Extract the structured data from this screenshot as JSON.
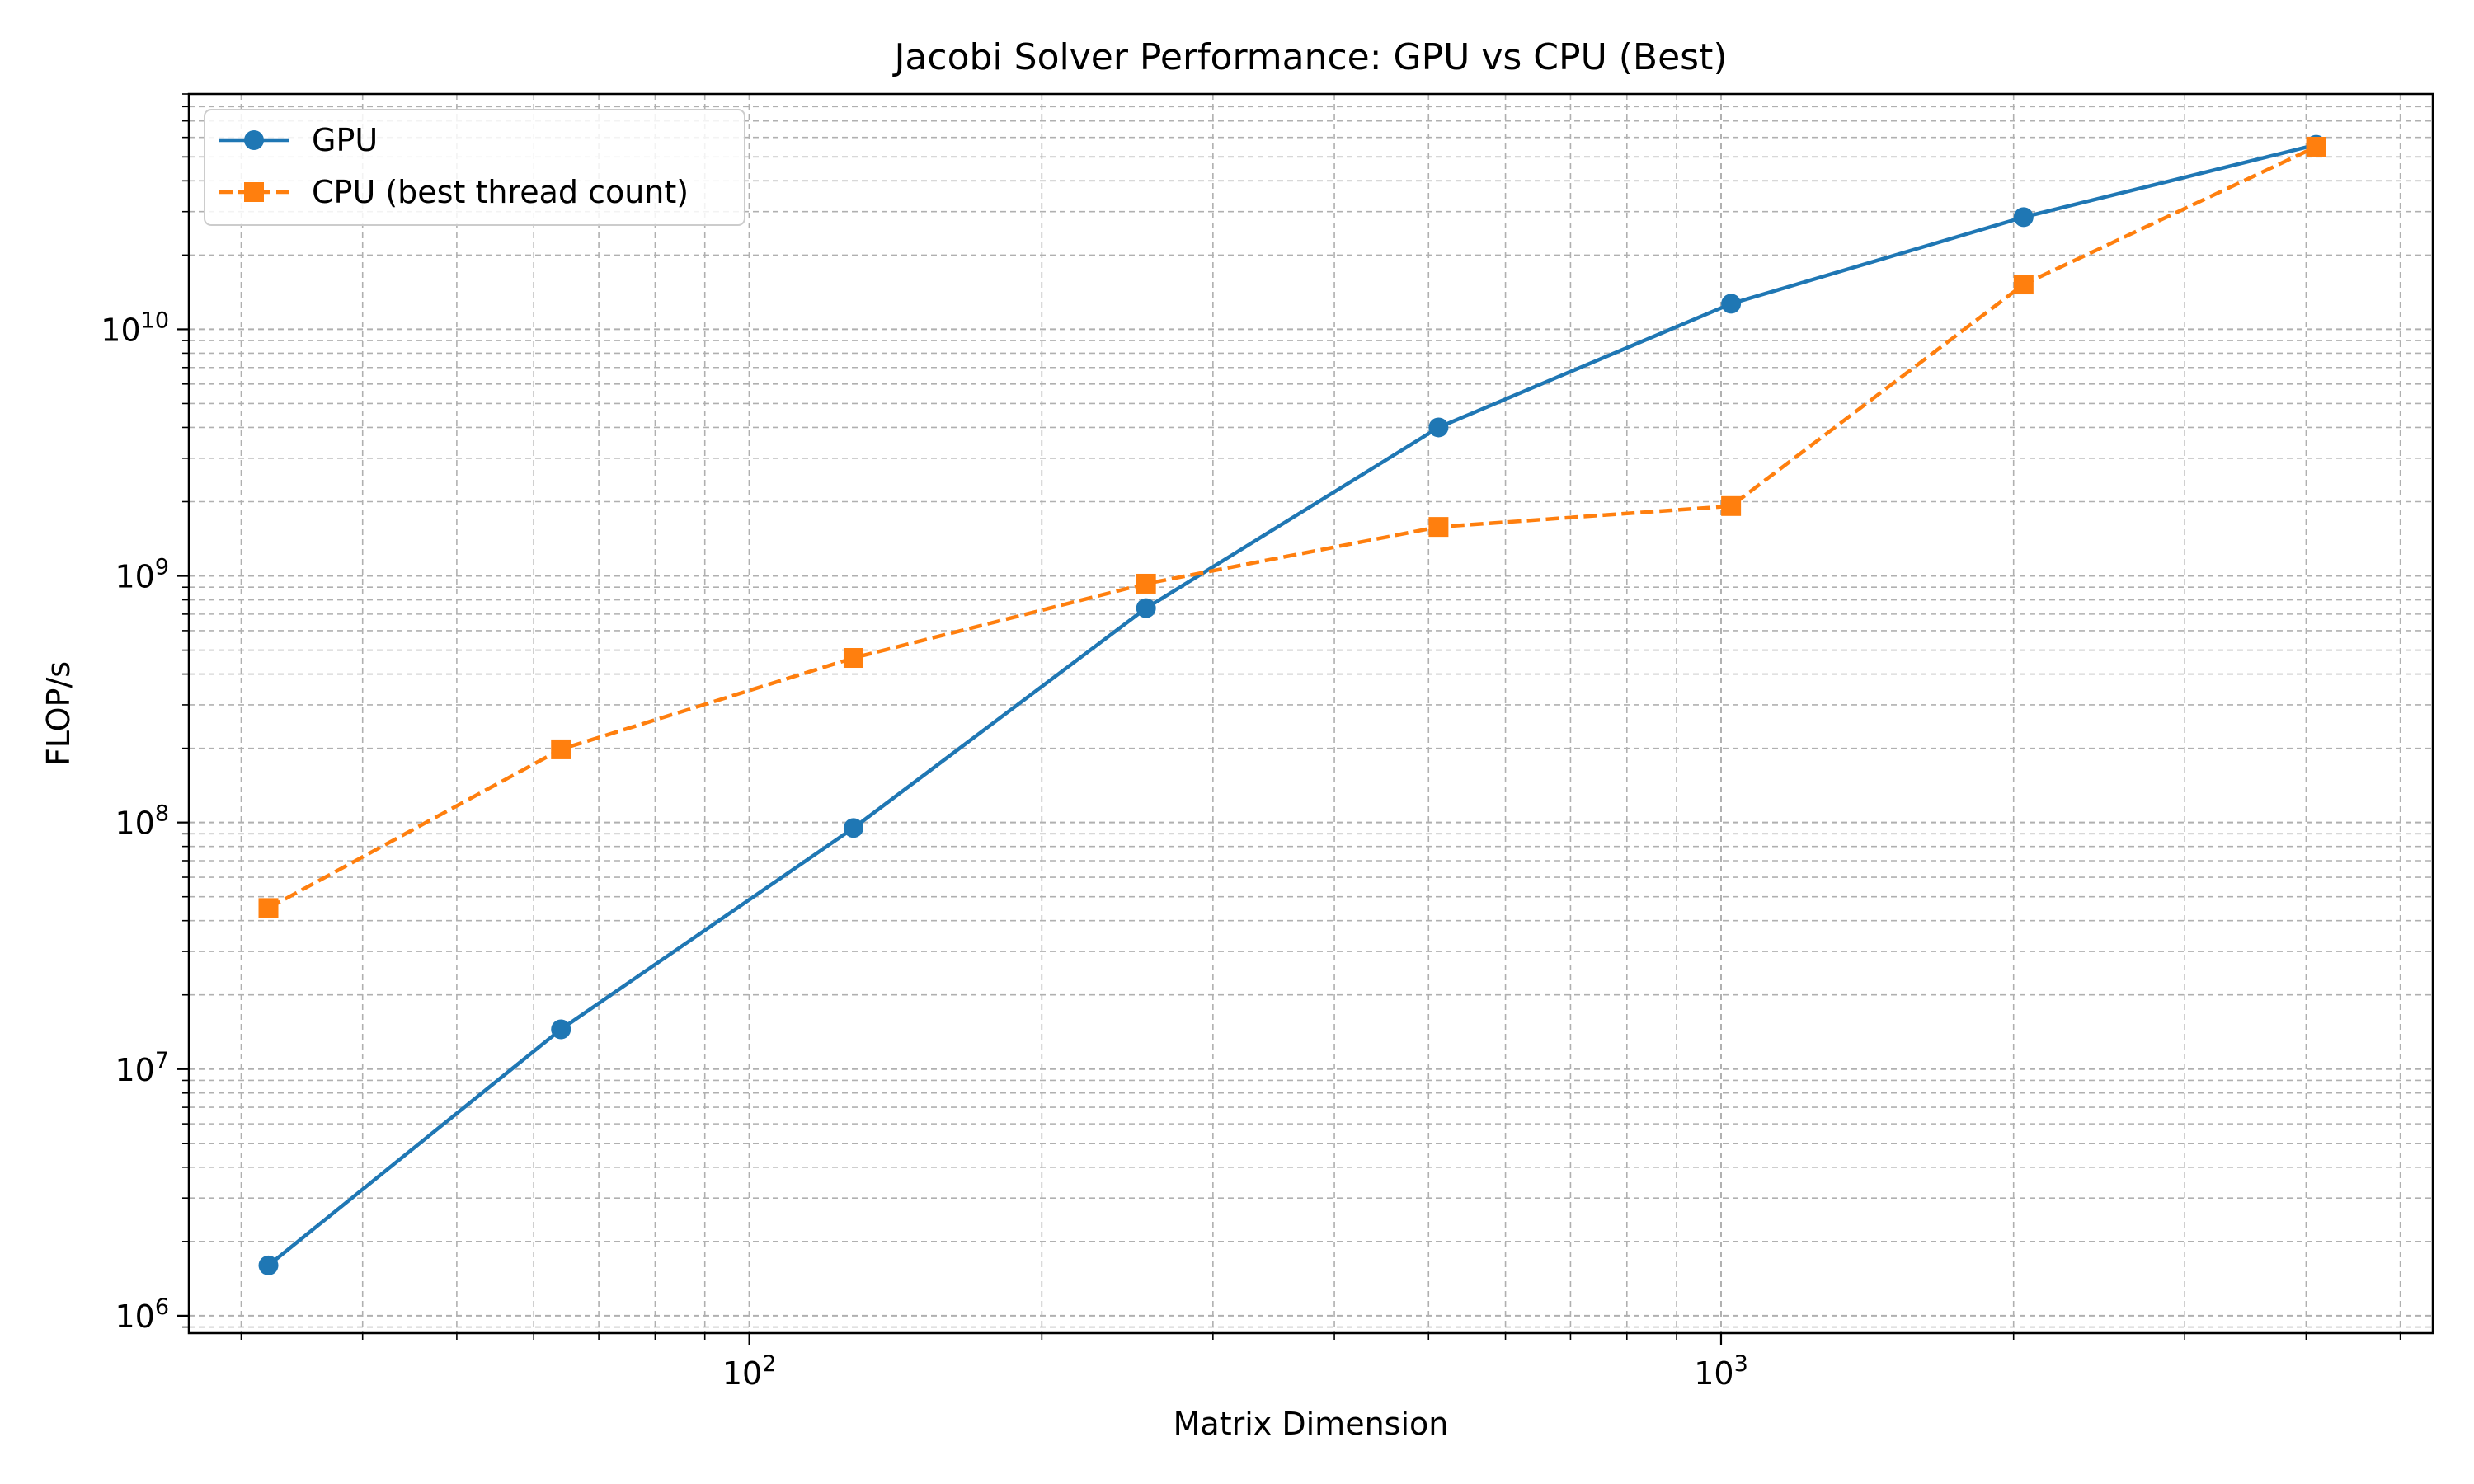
{
  "chart_data": {
    "type": "line",
    "title": "Jacobi Solver Performance: GPU vs CPU (Best)",
    "xlabel": "Matrix Dimension",
    "ylabel": "FLOP/s",
    "xscale": "log",
    "yscale": "log",
    "xlim": [
      26.5,
      5400
    ],
    "ylim": [
      850000,
      90000000000
    ],
    "grid": "on (major and minor, dashed)",
    "legend_position": "top-left",
    "x": [
      32,
      64,
      128,
      256,
      512,
      1024,
      2048,
      4096
    ],
    "series": [
      {
        "name": "GPU",
        "color": "#1f77b4",
        "line_style": "solid",
        "marker": "circle",
        "values": [
          1600000,
          14500000,
          95000000,
          740000000,
          4000000000,
          12700000000,
          28500000000,
          56000000000
        ]
      },
      {
        "name": "CPU (best thread count)",
        "color": "#ff7f0e",
        "line_style": "dashed",
        "marker": "square",
        "values": [
          45000000,
          198000000,
          465000000,
          930000000,
          1580000000,
          1920000000,
          15200000000,
          55000000000
        ]
      }
    ],
    "x_ticks": [
      {
        "value": 100,
        "base": "10",
        "exp": "2"
      },
      {
        "value": 1000,
        "base": "10",
        "exp": "3"
      }
    ],
    "y_ticks": [
      {
        "value": 1000000,
        "base": "10",
        "exp": "6"
      },
      {
        "value": 10000000,
        "base": "10",
        "exp": "7"
      },
      {
        "value": 100000000,
        "base": "10",
        "exp": "8"
      },
      {
        "value": 1000000000,
        "base": "10",
        "exp": "9"
      },
      {
        "value": 10000000000,
        "base": "10",
        "exp": "10"
      }
    ]
  }
}
